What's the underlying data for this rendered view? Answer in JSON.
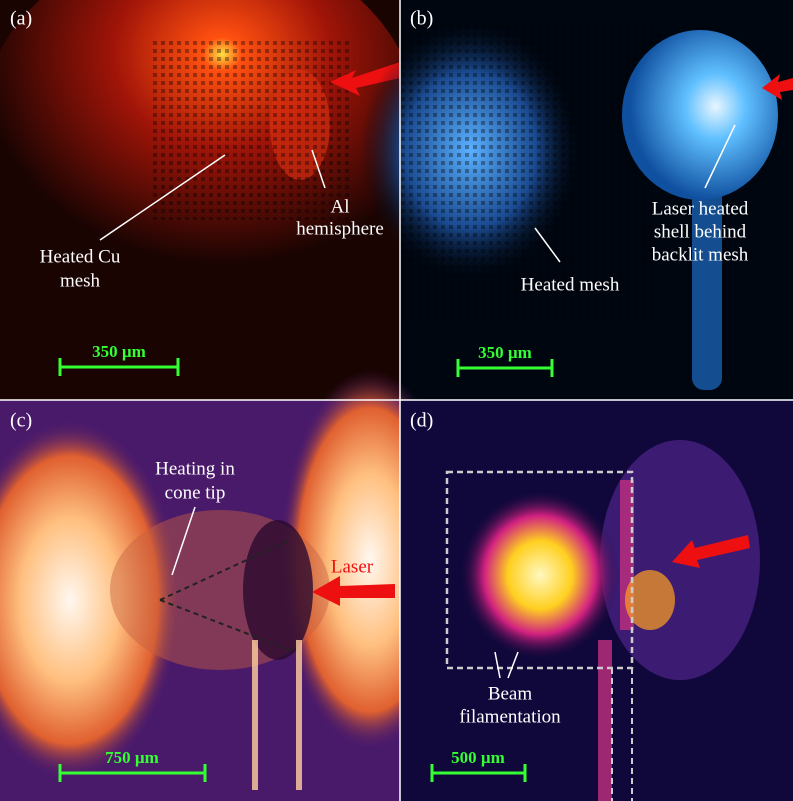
{
  "panels": [
    {
      "label": "(a)",
      "annotations": [
        {
          "lines": [
            "Heated Cu",
            "mesh"
          ]
        },
        {
          "lines": [
            "Al",
            "hemisphere"
          ]
        }
      ],
      "scale_bar": "350 µm"
    },
    {
      "label": "(b)",
      "annotations": [
        {
          "lines": [
            "Heated mesh"
          ]
        },
        {
          "lines": [
            "Laser heated",
            "shell behind",
            "backlit mesh"
          ]
        }
      ],
      "scale_bar": "350 µm"
    },
    {
      "label": "(c)",
      "annotations": [
        {
          "lines": [
            "Heating in",
            "cone tip"
          ]
        },
        {
          "lines": [
            "Laser"
          ]
        }
      ],
      "scale_bar": "750 µm"
    },
    {
      "label": "(d)",
      "annotations": [
        {
          "lines": [
            "Beam",
            "filamentation"
          ]
        }
      ],
      "scale_bar": "500 µm"
    }
  ]
}
